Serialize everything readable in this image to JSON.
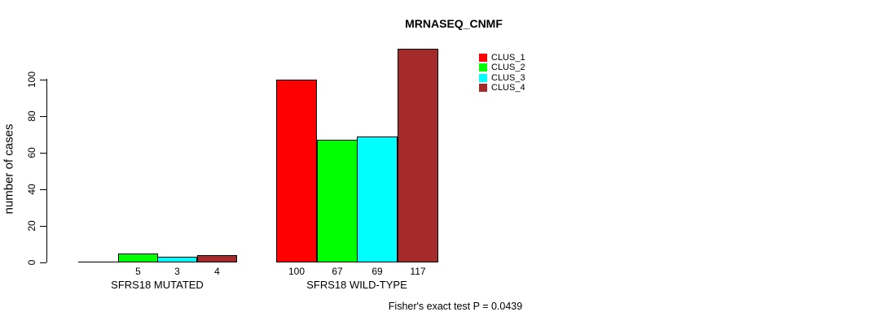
{
  "chart_data": {
    "type": "bar",
    "title": "MRNASEQ_CNMF",
    "ylabel": "number of cases",
    "yticks": [
      "0",
      "20",
      "40",
      "60",
      "80",
      "100"
    ],
    "ylim": [
      0,
      117
    ],
    "grid": false,
    "legend_position": "top-right-of-plot",
    "categories": [
      "SFRS18 MUTATED",
      "SFRS18 WILD-TYPE"
    ],
    "series": [
      {
        "name": "CLUS_1",
        "color": "#FF0000",
        "values": [
          0,
          100
        ]
      },
      {
        "name": "CLUS_2",
        "color": "#00FF00",
        "values": [
          5,
          67
        ]
      },
      {
        "name": "CLUS_3",
        "color": "#00FFFF",
        "values": [
          3,
          69
        ]
      },
      {
        "name": "CLUS_4",
        "color": "#A52A2A",
        "values": [
          4,
          117
        ]
      }
    ],
    "bar_value_labels": [
      [
        "",
        "5",
        "3",
        "4"
      ],
      [
        "100",
        "67",
        "69",
        "117"
      ]
    ],
    "annotation": "Fisher's exact test P = 0.0439",
    "axis_color": "#000000",
    "background_color": "#FFFFFF"
  }
}
